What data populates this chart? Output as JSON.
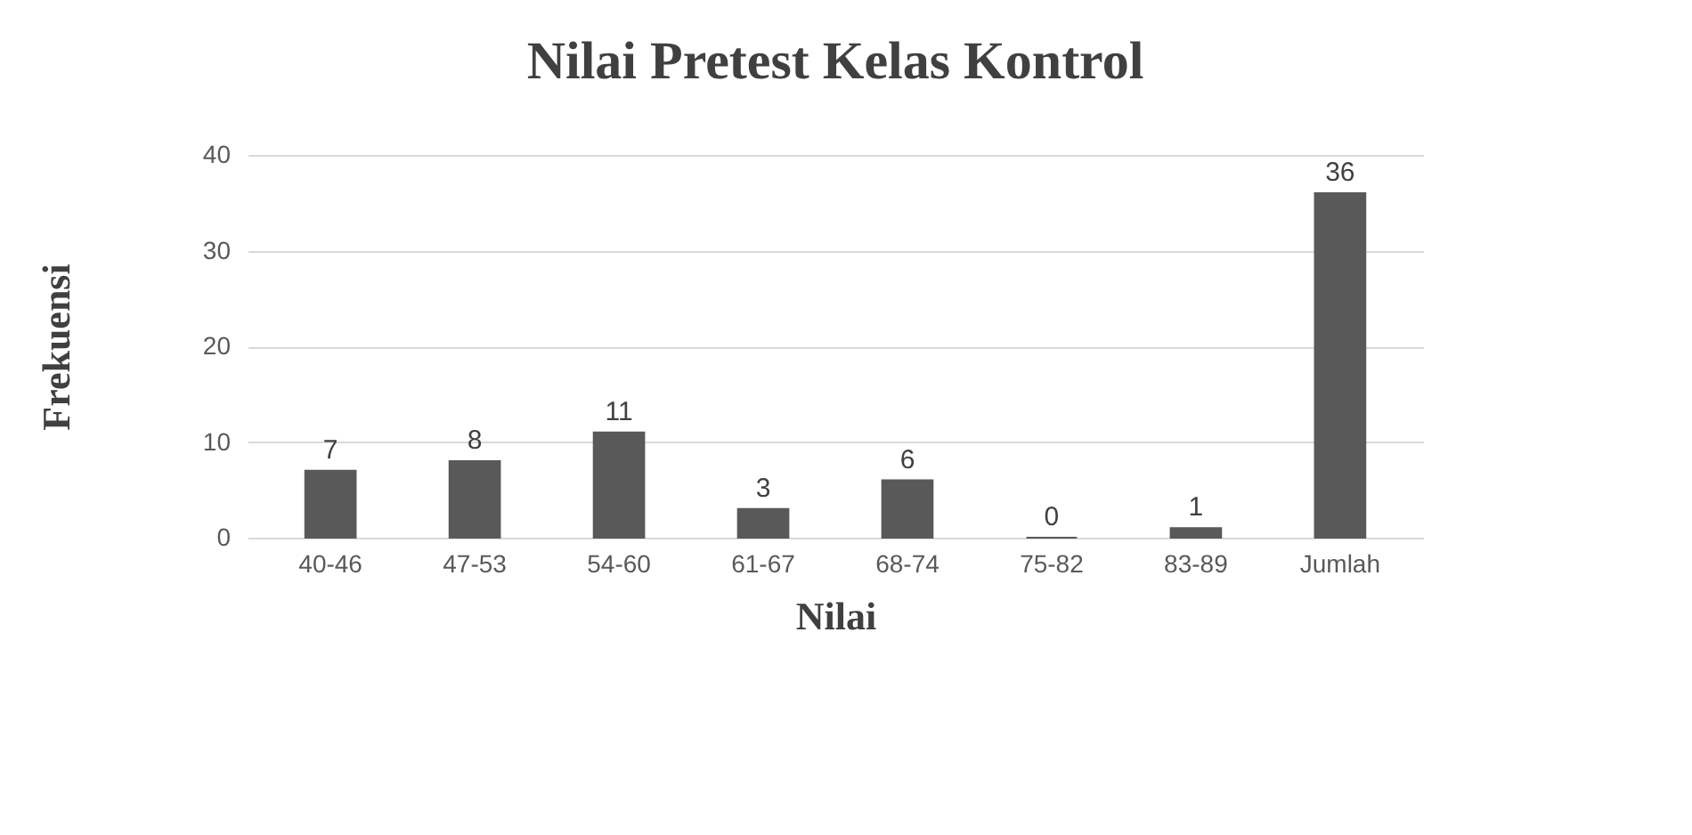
{
  "chart_data": {
    "type": "bar",
    "title": "Nilai Pretest Kelas Kontrol",
    "xlabel": "Nilai",
    "ylabel": "Frekuensi",
    "categories": [
      "40-46",
      "47-53",
      "54-60",
      "61-67",
      "68-74",
      "75-82",
      "83-89",
      "Jumlah"
    ],
    "values": [
      7,
      8,
      11,
      3,
      6,
      0,
      1,
      36
    ],
    "color": "#595959",
    "ylim": [
      0,
      40
    ],
    "yticks": [
      0,
      10,
      20,
      30,
      40
    ],
    "grid": "y",
    "data_labels": true
  }
}
